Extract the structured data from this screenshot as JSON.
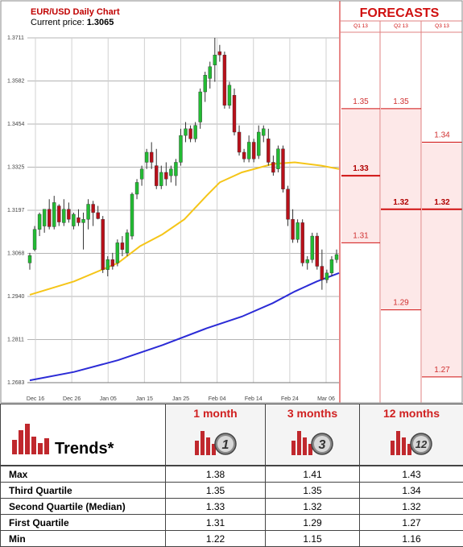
{
  "header": {
    "title": "EUR/USD Daily Chart",
    "price_label": "Current price:",
    "price_value": "1.3065"
  },
  "colors": {
    "ma_short": "#f5c518",
    "ma_long": "#2b2bd6",
    "bull": "#22bb33",
    "bear": "#b8101a",
    "forecast_bg": "#fde8e8",
    "forecast_line": "#d01010",
    "accent": "#d02020"
  },
  "chart_data": {
    "type": "candlestick",
    "ylim": [
      1.2683,
      1.3711
    ],
    "y_ticks": [
      "1.2683",
      "1.2811",
      "1.2940",
      "1.3068",
      "1.3197",
      "1.3325",
      "1.3454",
      "1.3582",
      "1.3711"
    ],
    "x_ticks": [
      "Dec 16",
      "Dec 26",
      "Jan 05",
      "Jan 15",
      "Jan 25",
      "Feb 04",
      "Feb 14",
      "Feb 24",
      "Mar 06"
    ],
    "candles": [
      [
        1.304,
        1.307,
        1.302,
        1.3062
      ],
      [
        1.308,
        1.315,
        1.3075,
        1.314
      ],
      [
        1.314,
        1.319,
        1.312,
        1.3185
      ],
      [
        1.315,
        1.32,
        1.313,
        1.32
      ],
      [
        1.32,
        1.323,
        1.314,
        1.3148
      ],
      [
        1.3148,
        1.324,
        1.314,
        1.322
      ],
      [
        1.321,
        1.3215,
        1.315,
        1.3162
      ],
      [
        1.316,
        1.323,
        1.315,
        1.32
      ],
      [
        1.32,
        1.322,
        1.316,
        1.317
      ],
      [
        1.315,
        1.319,
        1.314,
        1.3185
      ],
      [
        1.3175,
        1.32,
        1.315,
        1.316
      ],
      [
        1.316,
        1.319,
        1.308,
        1.317
      ],
      [
        1.317,
        1.323,
        1.314,
        1.3215
      ],
      [
        1.3215,
        1.3225,
        1.315,
        1.319
      ],
      [
        1.319,
        1.321,
        1.317,
        1.3172
      ],
      [
        1.317,
        1.318,
        1.301,
        1.302
      ],
      [
        1.302,
        1.306,
        1.3,
        1.305
      ],
      [
        1.305,
        1.307,
        1.302,
        1.303
      ],
      [
        1.304,
        1.311,
        1.303,
        1.31
      ],
      [
        1.31,
        1.312,
        1.306,
        1.308
      ],
      [
        1.307,
        1.314,
        1.306,
        1.313
      ],
      [
        1.312,
        1.325,
        1.311,
        1.3245
      ],
      [
        1.3245,
        1.329,
        1.323,
        1.328
      ],
      [
        1.329,
        1.333,
        1.327,
        1.332
      ],
      [
        1.334,
        1.338,
        1.332,
        1.337
      ],
      [
        1.337,
        1.34,
        1.332,
        1.334
      ],
      [
        1.333,
        1.338,
        1.326,
        1.327
      ],
      [
        1.327,
        1.333,
        1.326,
        1.331
      ],
      [
        1.331,
        1.334,
        1.327,
        1.329
      ],
      [
        1.33,
        1.333,
        1.328,
        1.332
      ],
      [
        1.33,
        1.335,
        1.327,
        1.334
      ],
      [
        1.334,
        1.344,
        1.333,
        1.342
      ],
      [
        1.342,
        1.346,
        1.34,
        1.344
      ],
      [
        1.344,
        1.345,
        1.34,
        1.341
      ],
      [
        1.341,
        1.346,
        1.34,
        1.345
      ],
      [
        1.346,
        1.356,
        1.344,
        1.355
      ],
      [
        1.355,
        1.361,
        1.352,
        1.36
      ],
      [
        1.359,
        1.364,
        1.356,
        1.3625
      ],
      [
        1.363,
        1.3711,
        1.358,
        1.366
      ],
      [
        1.367,
        1.369,
        1.364,
        1.366
      ],
      [
        1.366,
        1.367,
        1.35,
        1.351
      ],
      [
        1.351,
        1.358,
        1.35,
        1.357
      ],
      [
        1.354,
        1.356,
        1.342,
        1.343
      ],
      [
        1.343,
        1.345,
        1.336,
        1.337
      ],
      [
        1.337,
        1.338,
        1.334,
        1.335
      ],
      [
        1.335,
        1.342,
        1.334,
        1.34
      ],
      [
        1.34,
        1.341,
        1.334,
        1.335
      ],
      [
        1.336,
        1.345,
        1.335,
        1.343
      ],
      [
        1.342,
        1.345,
        1.34,
        1.344
      ],
      [
        1.341,
        1.344,
        1.333,
        1.334
      ],
      [
        1.334,
        1.336,
        1.33,
        1.331
      ],
      [
        1.332,
        1.339,
        1.331,
        1.338
      ],
      [
        1.338,
        1.339,
        1.325,
        1.326
      ],
      [
        1.326,
        1.327,
        1.315,
        1.317
      ],
      [
        1.317,
        1.32,
        1.31,
        1.311
      ],
      [
        1.311,
        1.317,
        1.31,
        1.316
      ],
      [
        1.316,
        1.317,
        1.303,
        1.304
      ],
      [
        1.304,
        1.306,
        1.302,
        1.305
      ],
      [
        1.305,
        1.313,
        1.304,
        1.312
      ],
      [
        1.312,
        1.313,
        1.302,
        1.303
      ],
      [
        1.303,
        1.308,
        1.296,
        1.299
      ],
      [
        1.299,
        1.302,
        1.298,
        1.301
      ],
      [
        1.301,
        1.306,
        1.3,
        1.305
      ],
      [
        1.305,
        1.308,
        1.304,
        1.3065
      ]
    ],
    "moving_averages": [
      {
        "color_key": "ma_short",
        "points": [
          [
            0,
            1.2945
          ],
          [
            10,
            1.2985
          ],
          [
            20,
            1.304
          ],
          [
            25,
            1.309
          ],
          [
            30,
            1.3125
          ],
          [
            35,
            1.317
          ],
          [
            40,
            1.324
          ],
          [
            43,
            1.328
          ],
          [
            48,
            1.331
          ],
          [
            55,
            1.3335
          ],
          [
            60,
            1.334
          ],
          [
            66,
            1.333
          ],
          [
            70,
            1.332
          ]
        ]
      },
      {
        "color_key": "ma_long",
        "points": [
          [
            0,
            1.269
          ],
          [
            10,
            1.2715
          ],
          [
            20,
            1.275
          ],
          [
            30,
            1.2795
          ],
          [
            40,
            1.2845
          ],
          [
            48,
            1.288
          ],
          [
            55,
            1.292
          ],
          [
            60,
            1.2955
          ],
          [
            65,
            1.2985
          ],
          [
            70,
            1.301
          ]
        ]
      }
    ],
    "forecast": {
      "title": "FORECASTS",
      "quarters": [
        "Q1 13",
        "Q2 13",
        "Q3 13"
      ],
      "columns": [
        {
          "values": [
            "1.35",
            "1.33",
            "1.31"
          ],
          "levels": [
            1.35,
            1.33,
            1.31
          ],
          "highlight_index": 1
        },
        {
          "values": [
            "1.35",
            "1.32",
            "1.29"
          ],
          "levels": [
            1.35,
            1.32,
            1.29
          ],
          "highlight_index": 1
        },
        {
          "values": [
            "1.34",
            "1.32",
            "1.27"
          ],
          "levels": [
            1.34,
            1.32,
            1.27
          ],
          "highlight_index": 1
        }
      ]
    }
  },
  "trends": {
    "title": "Trends*",
    "horizons": [
      {
        "label": "1 month",
        "badge": "1"
      },
      {
        "label": "3 months",
        "badge": "3"
      },
      {
        "label": "12 months",
        "badge": "12"
      }
    ],
    "rows": [
      {
        "label": "Max",
        "values": [
          "1.38",
          "1.41",
          "1.43"
        ]
      },
      {
        "label": "Third Quartile",
        "values": [
          "1.35",
          "1.35",
          "1.34"
        ]
      },
      {
        "label": "Second Quartile (Median)",
        "values": [
          "1.33",
          "1.32",
          "1.32"
        ]
      },
      {
        "label": "First Quartile",
        "values": [
          "1.31",
          "1.29",
          "1.27"
        ]
      },
      {
        "label": "Min",
        "values": [
          "1.22",
          "1.15",
          "1.16"
        ]
      }
    ]
  }
}
